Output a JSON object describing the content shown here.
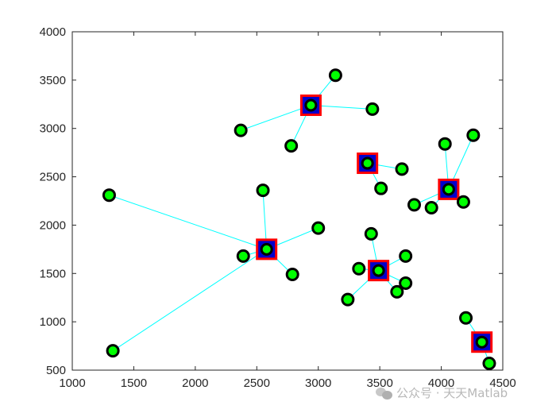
{
  "watermark": {
    "text": "公众号 · 天天Matlab",
    "icon": "wechat-icon"
  },
  "colors": {
    "axis": "#262626",
    "link": "#00ffff",
    "point_edge": "#000000",
    "point_fill": "#00ff00",
    "center_edge": "#ff0000",
    "center_fill": "#0000cc"
  },
  "chart_data": {
    "type": "scatter",
    "title": "",
    "xlabel": "",
    "ylabel": "",
    "xlim": [
      1000,
      4500
    ],
    "ylim": [
      500,
      4000
    ],
    "xticks": [
      1000,
      1500,
      2000,
      2500,
      3000,
      3500,
      4000,
      4500
    ],
    "yticks": [
      500,
      1000,
      1500,
      2000,
      2500,
      3000,
      3500,
      4000
    ],
    "grid": false,
    "clusters": [
      {
        "center": [
          2940,
          3240
        ],
        "points": [
          [
            3140,
            3550
          ],
          [
            2370,
            2980
          ],
          [
            2780,
            2820
          ],
          [
            3440,
            3200
          ]
        ]
      },
      {
        "center": [
          2580,
          1750
        ],
        "points": [
          [
            1300,
            2310
          ],
          [
            2550,
            2360
          ],
          [
            3000,
            1970
          ],
          [
            2790,
            1490
          ],
          [
            2390,
            1680
          ],
          [
            1330,
            700
          ]
        ]
      },
      {
        "center": [
          3400,
          2640
        ],
        "points": [
          [
            3680,
            2580
          ],
          [
            3510,
            2380
          ]
        ]
      },
      {
        "center": [
          4060,
          2370
        ],
        "points": [
          [
            4030,
            2840
          ],
          [
            4260,
            2930
          ],
          [
            3780,
            2210
          ],
          [
            3920,
            2180
          ],
          [
            4180,
            2240
          ]
        ]
      },
      {
        "center": [
          3490,
          1530
        ],
        "points": [
          [
            3430,
            1910
          ],
          [
            3710,
            1680
          ],
          [
            3330,
            1550
          ],
          [
            3710,
            1400
          ],
          [
            3640,
            1310
          ],
          [
            3240,
            1230
          ]
        ]
      },
      {
        "center": [
          4330,
          790
        ],
        "points": [
          [
            4200,
            1040
          ],
          [
            4390,
            570
          ]
        ]
      }
    ]
  }
}
